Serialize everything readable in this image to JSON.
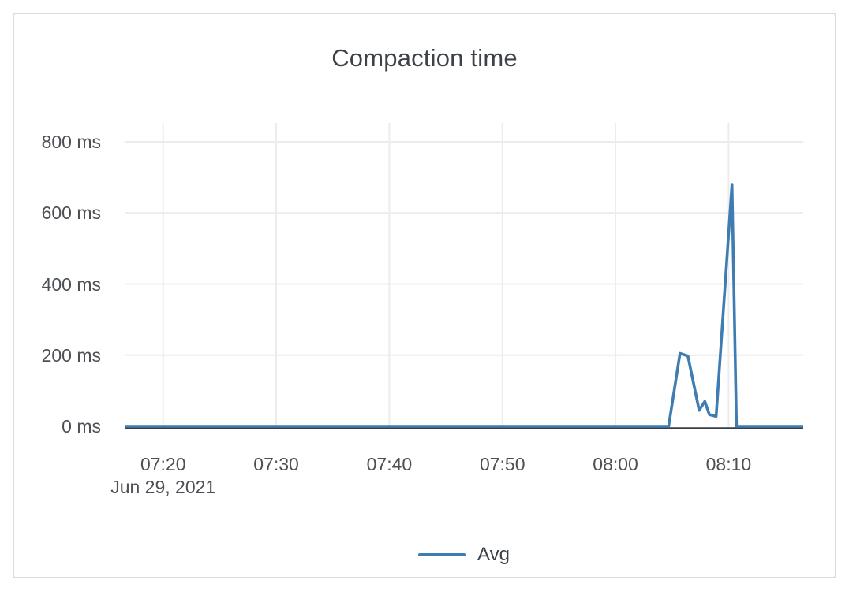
{
  "card": {
    "title": "Compaction time"
  },
  "colors": {
    "line": "#3e7cb1",
    "grid": "#ececec",
    "axis_line": "#3a3d44",
    "title_text": "#3d4248",
    "label_text": "#4c4f54",
    "card_border": "#dcdcdc"
  },
  "chart_data": {
    "type": "line",
    "title": "Compaction time",
    "xlabel": "",
    "ylabel": "",
    "unit": "ms",
    "date_label": "Jun 29, 2021",
    "grid": true,
    "legend": {
      "position": "bottom",
      "entries": [
        {
          "label": "Avg",
          "color": "#3e7cb1"
        }
      ]
    },
    "x_range": [
      "07:16:36",
      "08:16:36"
    ],
    "x_ticks": [
      {
        "time": "07:20:00",
        "label": "07:20",
        "sublabel": "Jun 29, 2021"
      },
      {
        "time": "07:30:00",
        "label": "07:30"
      },
      {
        "time": "07:40:00",
        "label": "07:40"
      },
      {
        "time": "07:50:00",
        "label": "07:50"
      },
      {
        "time": "08:00:00",
        "label": "08:00"
      },
      {
        "time": "08:10:00",
        "label": "08:10"
      }
    ],
    "ylim": [
      0,
      855
    ],
    "y_ticks": [
      {
        "value": 0,
        "label": "0 ms"
      },
      {
        "value": 200,
        "label": "200 ms"
      },
      {
        "value": 400,
        "label": "400 ms"
      },
      {
        "value": 600,
        "label": "600 ms"
      },
      {
        "value": 800,
        "label": "800 ms"
      }
    ],
    "series": [
      {
        "name": "Avg",
        "color": "#3e7cb1",
        "points": [
          [
            "07:16:36",
            0
          ],
          [
            "07:20:00",
            0
          ],
          [
            "07:30:00",
            0
          ],
          [
            "07:40:00",
            0
          ],
          [
            "07:50:00",
            0
          ],
          [
            "08:00:00",
            0
          ],
          [
            "08:04:42",
            0
          ],
          [
            "08:05:42",
            205
          ],
          [
            "08:06:24",
            198
          ],
          [
            "08:07:24",
            45
          ],
          [
            "08:07:54",
            70
          ],
          [
            "08:08:18",
            33
          ],
          [
            "08:08:54",
            28
          ],
          [
            "08:10:18",
            680
          ],
          [
            "08:10:42",
            0
          ],
          [
            "08:16:36",
            0
          ]
        ]
      }
    ]
  }
}
